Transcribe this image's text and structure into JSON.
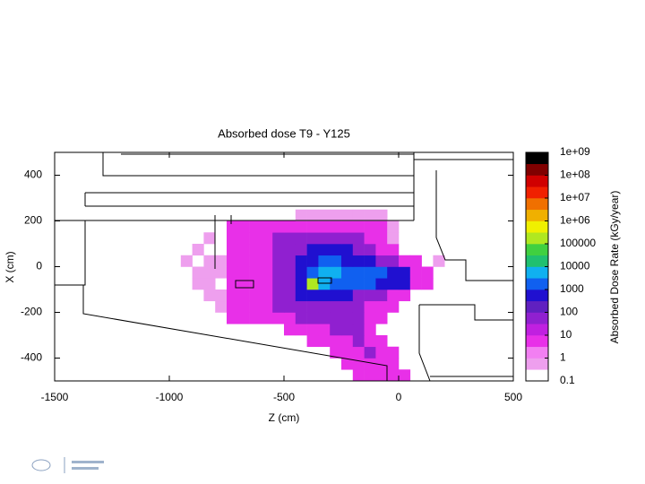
{
  "chart_data": {
    "type": "heatmap",
    "title": "Absorbed dose T9 - Y125",
    "xlabel": "Z (cm)",
    "ylabel": "X (cm)",
    "xlim": [
      -1500,
      500
    ],
    "xticks": [
      -1500,
      -1000,
      -500,
      0,
      500
    ],
    "ylim": [
      -500,
      500
    ],
    "yticks": [
      -400,
      -200,
      0,
      200,
      400
    ],
    "x_bins": [
      -1000,
      -950,
      -900,
      -850,
      -800,
      -750,
      -700,
      -650,
      -600,
      -550,
      -500,
      -450,
      -400,
      -350,
      -300,
      -250,
      -200,
      -150,
      -100,
      -50,
      0,
      50,
      100,
      150,
      200,
      250
    ],
    "y_bins": [
      -500,
      -450,
      -400,
      -350,
      -300,
      -250,
      -200,
      -150,
      -100,
      -50,
      0,
      50,
      100,
      150,
      200,
      250,
      300,
      350,
      400,
      450,
      500
    ],
    "z": [
      [
        null,
        null,
        null,
        null,
        null,
        null,
        null,
        null,
        null,
        null,
        null,
        null,
        null,
        null,
        null,
        null,
        5,
        5,
        5,
        5,
        5,
        null,
        null,
        null,
        null
      ],
      [
        null,
        null,
        null,
        null,
        null,
        null,
        null,
        null,
        null,
        null,
        null,
        null,
        null,
        null,
        null,
        5,
        5,
        5,
        5,
        5,
        null,
        null,
        null,
        null,
        null
      ],
      [
        null,
        null,
        null,
        null,
        null,
        null,
        null,
        null,
        null,
        null,
        null,
        null,
        null,
        null,
        5,
        5,
        5,
        50,
        5,
        5,
        null,
        null,
        null,
        null,
        null
      ],
      [
        null,
        null,
        null,
        null,
        null,
        null,
        null,
        null,
        null,
        null,
        null,
        null,
        5,
        5,
        5,
        5,
        50,
        5,
        5,
        null,
        null,
        null,
        null,
        null,
        null
      ],
      [
        null,
        null,
        null,
        null,
        null,
        null,
        null,
        null,
        null,
        null,
        5,
        5,
        5,
        5,
        50,
        50,
        50,
        5,
        null,
        null,
        null,
        null,
        null,
        null,
        null
      ],
      [
        null,
        null,
        null,
        null,
        null,
        5,
        5,
        5,
        5,
        5,
        5,
        50,
        50,
        50,
        50,
        50,
        50,
        5,
        5,
        null,
        null,
        null,
        null,
        null,
        null
      ],
      [
        null,
        null,
        null,
        null,
        0.5,
        5,
        5,
        5,
        5,
        50,
        50,
        50,
        50,
        50,
        50,
        50,
        50,
        5,
        5,
        5,
        null,
        null,
        null,
        null,
        null
      ],
      [
        null,
        null,
        null,
        0.5,
        0.5,
        5,
        5,
        5,
        5,
        50,
        50,
        500,
        500,
        500,
        500,
        500,
        50,
        50,
        50,
        5,
        5,
        null,
        null,
        null,
        null
      ],
      [
        null,
        null,
        0.5,
        0.5,
        null,
        5,
        5,
        5,
        5,
        50,
        50,
        500,
        100000,
        5000,
        3000,
        3000,
        3000,
        3000,
        500,
        500,
        500,
        5,
        5,
        null,
        null
      ],
      [
        null,
        null,
        0.5,
        0.5,
        0.5,
        5,
        5,
        5,
        5,
        50,
        50,
        500,
        3000,
        5000,
        5000,
        3000,
        3000,
        3000,
        3000,
        500,
        500,
        5,
        5,
        null,
        null
      ],
      [
        null,
        0.5,
        null,
        0.5,
        0.5,
        5,
        5,
        5,
        5,
        50,
        50,
        500,
        500,
        3000,
        3000,
        500,
        500,
        500,
        50,
        50,
        5,
        5,
        null,
        0.5,
        null
      ],
      [
        null,
        null,
        0.5,
        null,
        null,
        5,
        5,
        5,
        5,
        50,
        50,
        50,
        500,
        500,
        500,
        500,
        50,
        50,
        5,
        5,
        null,
        null,
        null,
        null,
        null
      ],
      [
        null,
        null,
        null,
        0.5,
        null,
        5,
        5,
        5,
        5,
        50,
        50,
        50,
        50,
        50,
        50,
        50,
        50,
        5,
        5,
        0.5,
        null,
        null,
        null,
        null,
        null
      ],
      [
        null,
        null,
        null,
        null,
        null,
        5,
        5,
        5,
        5,
        5,
        5,
        5,
        5,
        5,
        5,
        5,
        5,
        5,
        5,
        0.5,
        null,
        null,
        null,
        null,
        null
      ],
      [
        null,
        null,
        null,
        null,
        null,
        null,
        null,
        null,
        null,
        null,
        null,
        0.5,
        0.5,
        0.5,
        0.5,
        0.5,
        0.5,
        0.5,
        0.5,
        null,
        null,
        null,
        null,
        null,
        null
      ],
      [
        null,
        null,
        null,
        null,
        null,
        null,
        null,
        null,
        null,
        null,
        null,
        null,
        null,
        null,
        null,
        null,
        null,
        null,
        null,
        null,
        null,
        null,
        null,
        null,
        null
      ],
      [
        null,
        null,
        null,
        null,
        null,
        null,
        null,
        null,
        null,
        null,
        null,
        null,
        null,
        null,
        null,
        null,
        null,
        null,
        null,
        null,
        null,
        null,
        null,
        null,
        null
      ],
      [
        null,
        null,
        null,
        null,
        null,
        null,
        null,
        null,
        null,
        null,
        null,
        null,
        null,
        null,
        null,
        null,
        null,
        null,
        null,
        null,
        null,
        null,
        null,
        null,
        null
      ],
      [
        null,
        null,
        null,
        null,
        null,
        null,
        null,
        null,
        null,
        null,
        null,
        null,
        null,
        null,
        null,
        null,
        null,
        null,
        null,
        null,
        null,
        null,
        null,
        null,
        null
      ],
      [
        null,
        null,
        null,
        null,
        null,
        null,
        null,
        null,
        null,
        null,
        null,
        null,
        null,
        null,
        null,
        null,
        null,
        null,
        null,
        null,
        null,
        null,
        null,
        null,
        null
      ]
    ],
    "zlabel": "Absorbed Dose Rate (kGy/year)",
    "zscale": "log",
    "zlim": [
      0.1,
      1000000000
    ],
    "zticks": [
      {
        "value": 1000000000,
        "label": "1e+09"
      },
      {
        "value": 100000000,
        "label": "1e+08"
      },
      {
        "value": 10000000,
        "label": "1e+07"
      },
      {
        "value": 1000000,
        "label": "1e+06"
      },
      100000,
      10000,
      1000,
      100,
      10,
      1,
      0.1
    ],
    "colors": [
      "#ffffff",
      "#ee9fee",
      "#f27ff2",
      "#e830e8",
      "#c020e0",
      "#9020d0",
      "#6020c0",
      "#2010d0",
      "#1060f0",
      "#10b0f0",
      "#20c070",
      "#40d040",
      "#b0e820",
      "#f0f000",
      "#f0b000",
      "#f07000",
      "#f02000",
      "#d00000",
      "#800000",
      "#000000"
    ]
  }
}
